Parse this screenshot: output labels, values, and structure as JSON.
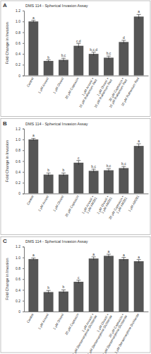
{
  "chart_data": [
    {
      "type": "bar",
      "panel_label": "A",
      "title": "DMS 114 - Spherical Invasion Assay",
      "y_label": "Fold Change in Invasion",
      "categories": [
        "Control",
        "1 μM Arvanil",
        "1 μM Olvanil",
        "20 μM Capsaicin",
        "1 μM Arvanil + 10 μM Ruthenium Red",
        "1 μM Olvanil + 10 μM Ruthenium Red",
        "20 μM Capsaicin + 10 μM Ruthenium Red",
        "10 μM Ruthenium Red"
      ],
      "values": [
        1.0,
        0.27,
        0.29,
        0.55,
        0.4,
        0.33,
        0.62,
        1.09
      ],
      "errors": [
        0.02,
        0.02,
        0.03,
        0.04,
        0.03,
        0.03,
        0.03,
        0.04
      ],
      "annotations": [
        "a",
        "b",
        "b,c",
        "c,d",
        "b,c,d",
        "b,c",
        "d",
        "a"
      ],
      "color": "#555555",
      "ylim": [
        0,
        1.2
      ],
      "yticks": [
        0,
        0.2,
        0.4,
        0.6,
        0.8,
        {
          "value": 1,
          "label": "1.0"
        },
        1.2
      ]
    },
    {
      "type": "bar",
      "panel_label": "B",
      "title": "DMS 114 - Spherical Invasion Assay",
      "y_label": "Fold Change in Invasion",
      "categories": [
        "Control",
        "1 μM Arvanil",
        "1 μM Olvanil",
        "20 μM Capsaicin",
        "1 μM Arvanil + 1 μM AM281",
        "1 μM Olvanil + 1 μM AM281",
        "20 μM Capsaicin + 1 μM AM281",
        "1 μM AM281"
      ],
      "values": [
        1.0,
        0.35,
        0.35,
        0.57,
        0.42,
        0.43,
        0.47,
        0.88
      ],
      "errors": [
        0.02,
        0.03,
        0.03,
        0.04,
        0.03,
        0.03,
        0.03,
        0.04
      ],
      "annotations": [
        "a",
        "b",
        "b",
        "c",
        "b,c",
        "b,c",
        "b,c",
        "a"
      ],
      "color": "#555555",
      "ylim": [
        0,
        1.2
      ],
      "yticks": [
        0,
        0.2,
        0.4,
        0.6,
        0.8,
        {
          "value": 1,
          "label": "1.0"
        },
        1.2
      ]
    },
    {
      "type": "bar",
      "panel_label": "C",
      "title": "DMS 114 - Spherical Invasion Assay",
      "y_label": "Fold Change in Invasion",
      "categories": [
        "Control",
        "1 μM Arvanil",
        "1 μM Olvanil",
        "20 μM Capsaicin",
        "1 μM Arvanil + 1 μM Dorsomorphine Dichloride",
        "1 μM Olvanil + 1 μM Dorsomorphine Dichloride",
        "20 μM Capsaicin + 1 μM Dorsomorphine Dichloride",
        "1 μM Dorsomorphine Dichloride"
      ],
      "values": [
        0.97,
        0.36,
        0.37,
        0.55,
        0.98,
        1.03,
        0.97,
        0.93
      ],
      "errors": [
        0.02,
        0.03,
        0.03,
        0.03,
        0.03,
        0.03,
        0.03,
        0.03
      ],
      "annotations": [
        "a",
        "b",
        "b",
        "c",
        "a",
        "a",
        "a",
        "a"
      ],
      "color": "#555555",
      "ylim": [
        0,
        1.2
      ],
      "yticks": [
        0,
        0.2,
        0.4,
        0.6,
        0.8,
        {
          "value": 1,
          "label": "1.0"
        },
        1.2
      ]
    }
  ]
}
